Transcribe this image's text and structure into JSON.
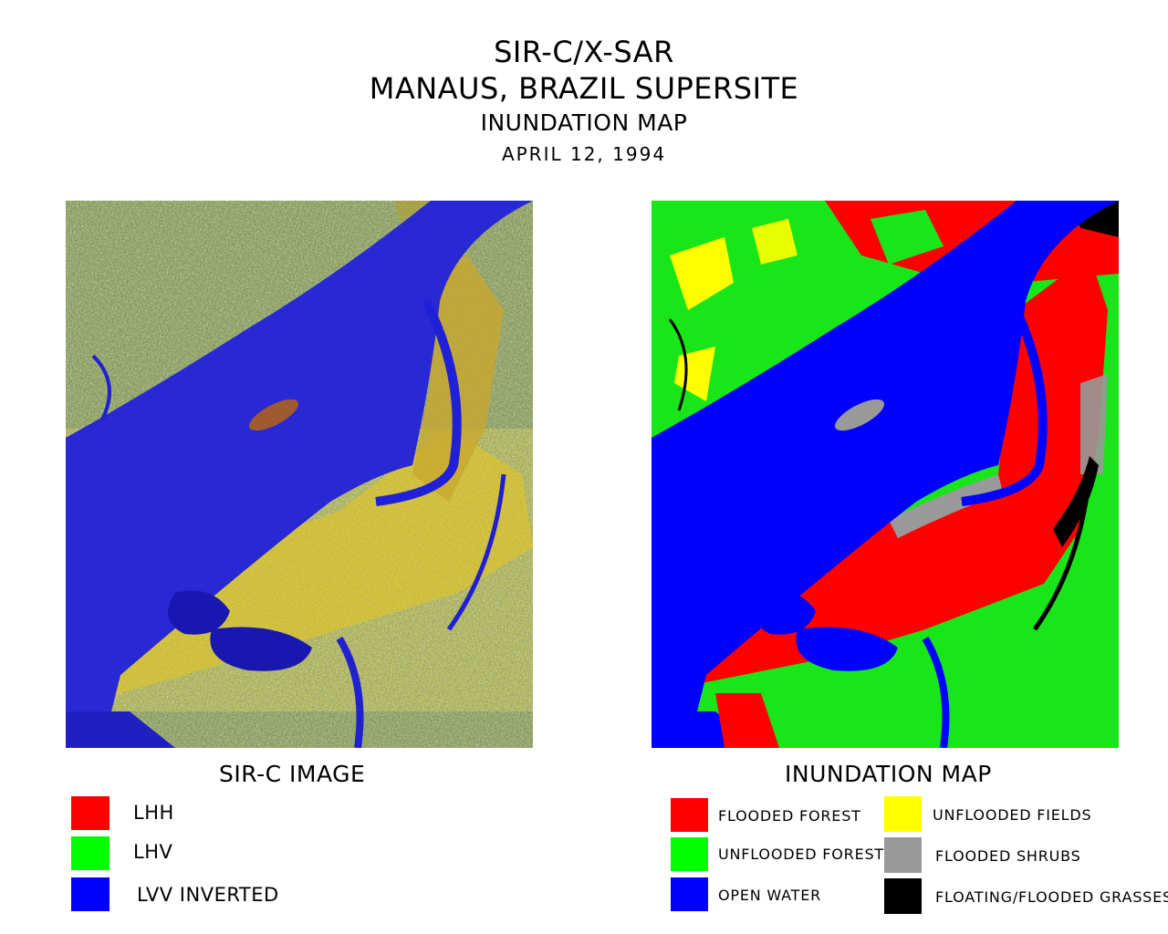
{
  "header": {
    "title_line1": "SIR-C/X-SAR",
    "title_line2": "MANAUS, BRAZIL SUPERSITE",
    "title_line3": "INUNDATION MAP",
    "date": "APRIL 12, 1994"
  },
  "left_panel": {
    "caption": "SIR-C IMAGE",
    "legend": [
      {
        "label": "LHH",
        "color": "#ff0000"
      },
      {
        "label": "LHV",
        "color": "#00ff00"
      },
      {
        "label": "LVV INVERTED",
        "color": "#0000ff"
      }
    ]
  },
  "right_panel": {
    "caption": "INUNDATION MAP",
    "legend": [
      {
        "label": "FLOODED FOREST",
        "color": "#ff0000"
      },
      {
        "label": "UNFLOODED FOREST",
        "color": "#00ff00"
      },
      {
        "label": "OPEN WATER",
        "color": "#0000ff"
      },
      {
        "label": "UNFLOODED FIELDS",
        "color": "#ffff00"
      },
      {
        "label": "FLOODED SHRUBS",
        "color": "#999999"
      },
      {
        "label": "FLOATING/FLOODED GRASSES",
        "color": "#000000"
      }
    ]
  }
}
